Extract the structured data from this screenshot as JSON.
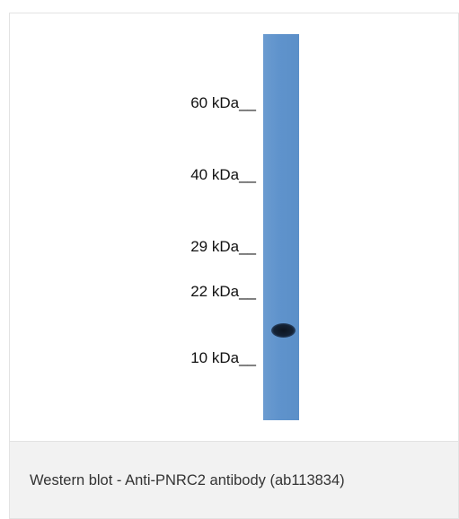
{
  "markers": [
    {
      "label": "60 kDa__"
    },
    {
      "label": "40 kDa__"
    },
    {
      "label": "29 kDa__"
    },
    {
      "label": "22 kDa__"
    },
    {
      "label": "10 kDa__"
    }
  ],
  "lane": {
    "color": "#5f93cc",
    "band_color": "#142235"
  },
  "caption": "Western blot - Anti-PNRC2 antibody (ab113834)"
}
